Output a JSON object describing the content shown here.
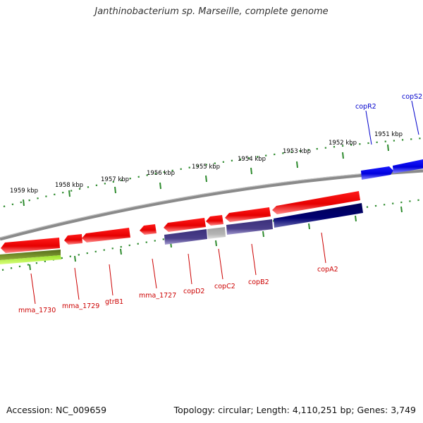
{
  "title": "Janthinobacterium sp. Marseille, complete genome",
  "footer": {
    "accession": "Accession: NC_009659",
    "summary": "Topology: circular; Length: 4,110,251 bp; Genes: 3,749"
  },
  "colors": {
    "backbone": "#8a8a8a",
    "tick": "#2e8b2e",
    "red_gene": "#ee0000",
    "red_label": "#cc0000",
    "blue_gene": "#0000ee",
    "blue_label": "#0000cc",
    "purple_gene": "#4a3f8a",
    "navy_gene": "#000066",
    "grey_gene": "#b0b0b0",
    "olive_gene": "#6b8e23",
    "lime_gene": "#adff2f"
  },
  "ruler_labels": [
    "1959 kbp",
    "1958 kbp",
    "1957 kbp",
    "1956 kbp",
    "1955 kbp",
    "1954 kbp",
    "1953 kbp",
    "1952 kbp",
    "1951 kbp"
  ],
  "gene_labels": [
    {
      "text": "copR2",
      "color": "blue"
    },
    {
      "text": "copS2",
      "color": "blue"
    },
    {
      "text": "mma_1730",
      "color": "red"
    },
    {
      "text": "mma_1729",
      "color": "red"
    },
    {
      "text": "gtrB1",
      "color": "red"
    },
    {
      "text": "mma_1727",
      "color": "red"
    },
    {
      "text": "copD2",
      "color": "red"
    },
    {
      "text": "copC2",
      "color": "red"
    },
    {
      "text": "copB2",
      "color": "red"
    },
    {
      "text": "copA2",
      "color": "red"
    }
  ]
}
